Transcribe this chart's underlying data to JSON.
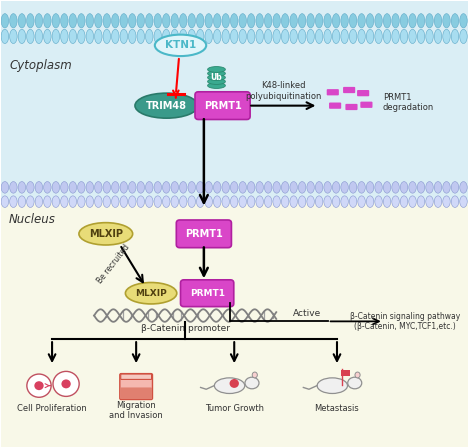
{
  "fig_width": 4.74,
  "fig_height": 4.48,
  "dpi": 100,
  "ktn1_color": "#4bb8c8",
  "trim48_color": "#3a9a8a",
  "prmt1_color": "#d946c8",
  "mlxip_color": "#e0d870",
  "cytoplasm_label": "Cytoplasm",
  "nucleus_label": "Nucleus",
  "k48_text": "K48-linked\npolyubiquitination",
  "prmt1_deg_text": "PRMT1\ndegradation",
  "be_recruited_text": "Be recruited",
  "beta_catenin_promoter": "β-Catenin promoter",
  "active_text": "Active",
  "signaling_text": "β-Catenin signaling pathway\n(β-Catenin, MYC,TCF1,etc.)",
  "cell_prolif_text": "Cell Proliferation",
  "migration_text": "Migration\nand Invasion",
  "tumor_text": "Tumor Growth",
  "metastasis_text": "Metastasis"
}
